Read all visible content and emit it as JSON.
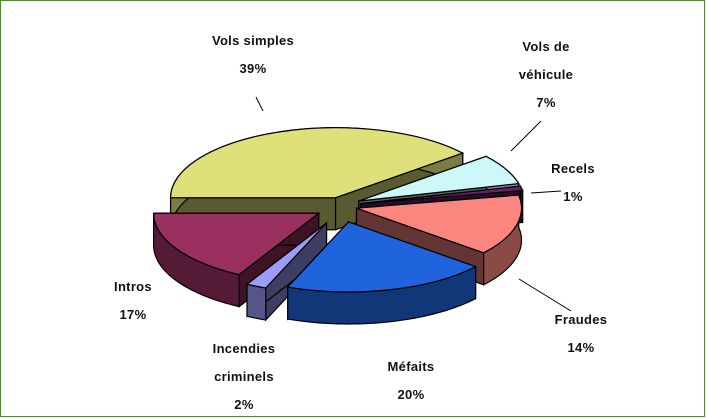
{
  "chart_data": {
    "type": "pie",
    "style": "3d-exploded",
    "slices": [
      {
        "label": "Vols simples",
        "label_lines": [
          "Vols simples"
        ],
        "value": 39,
        "value_label": "39%",
        "color": "#e0e07a"
      },
      {
        "label": "Vols de véhicule",
        "label_lines": [
          "Vols de",
          "véhicule"
        ],
        "value": 7,
        "value_label": "7%",
        "color": "#ccf8f8"
      },
      {
        "label": "Recels",
        "label_lines": [
          "Recels"
        ],
        "value": 1,
        "value_label": "1%",
        "color": "#6a1f6a"
      },
      {
        "label": "Fraudes",
        "label_lines": [
          "Fraudes"
        ],
        "value": 14,
        "value_label": "14%",
        "color": "#fb8680"
      },
      {
        "label": "Méfaits",
        "label_lines": [
          "Méfaits"
        ],
        "value": 20,
        "value_label": "20%",
        "color": "#1f64dc"
      },
      {
        "label": "Incendies criminels",
        "label_lines": [
          "Incendies",
          "criminels"
        ],
        "value": 2,
        "value_label": "2%",
        "color": "#9a9cf6"
      },
      {
        "label": "Intros",
        "label_lines": [
          "Intros"
        ],
        "value": 17,
        "value_label": "17%",
        "color": "#9a3060"
      }
    ]
  }
}
